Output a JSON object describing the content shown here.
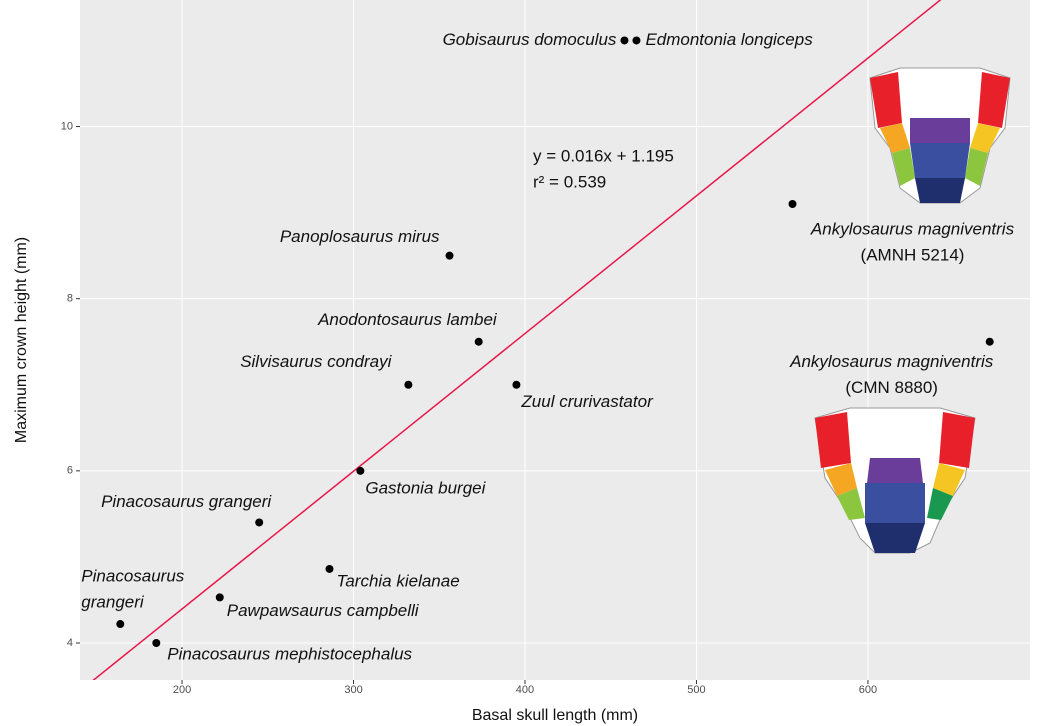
{
  "chart_data": {
    "type": "scatter",
    "xlabel": "Basal skull length (mm)",
    "ylabel": "Maximum crown height (mm)",
    "x": [
      458,
      465,
      556,
      671,
      356,
      373,
      332,
      395,
      304,
      245,
      286,
      222,
      164,
      185
    ],
    "values": [
      11.0,
      11.0,
      9.1,
      7.5,
      8.5,
      7.5,
      7.0,
      7.0,
      6.0,
      5.4,
      4.86,
      4.53,
      4.22,
      4.0
    ],
    "labels": [
      [
        "Gobisaurus domoculus"
      ],
      [
        "Edmontonia longiceps"
      ],
      [
        "Ankylosaurus magniventris",
        "(AMNH 5214)"
      ],
      [
        "Ankylosaurus magniventris",
        "(CMN 8880)"
      ],
      [
        "Panoplosaurus mirus"
      ],
      [
        "Anodontosaurus lambei"
      ],
      [
        "Silvisaurus condrayi"
      ],
      [
        "Zuul crurivastator"
      ],
      [
        "Gastonia burgei"
      ],
      [
        "Pinacosaurus grangeri"
      ],
      [
        "Tarchia kielanae"
      ],
      [
        "Pawpawsaurus campbelli"
      ],
      [
        "Pinacosaurus",
        "grangeri"
      ],
      [
        "Pinacosaurus mephistocephalus"
      ]
    ],
    "color": "#000000",
    "fit": {
      "slope": 0.016,
      "intercept": 1.195,
      "color": "#e8174a"
    },
    "annotation": [
      "y = 0.016x + 1.195",
      "r² = 0.539"
    ],
    "xlim": [
      140.5,
      694.5
    ],
    "ylim": [
      3.57,
      11.47
    ],
    "xticks": [
      200,
      300,
      400,
      500,
      600
    ],
    "yticks": [
      4,
      6,
      8,
      10
    ],
    "grid": true
  }
}
